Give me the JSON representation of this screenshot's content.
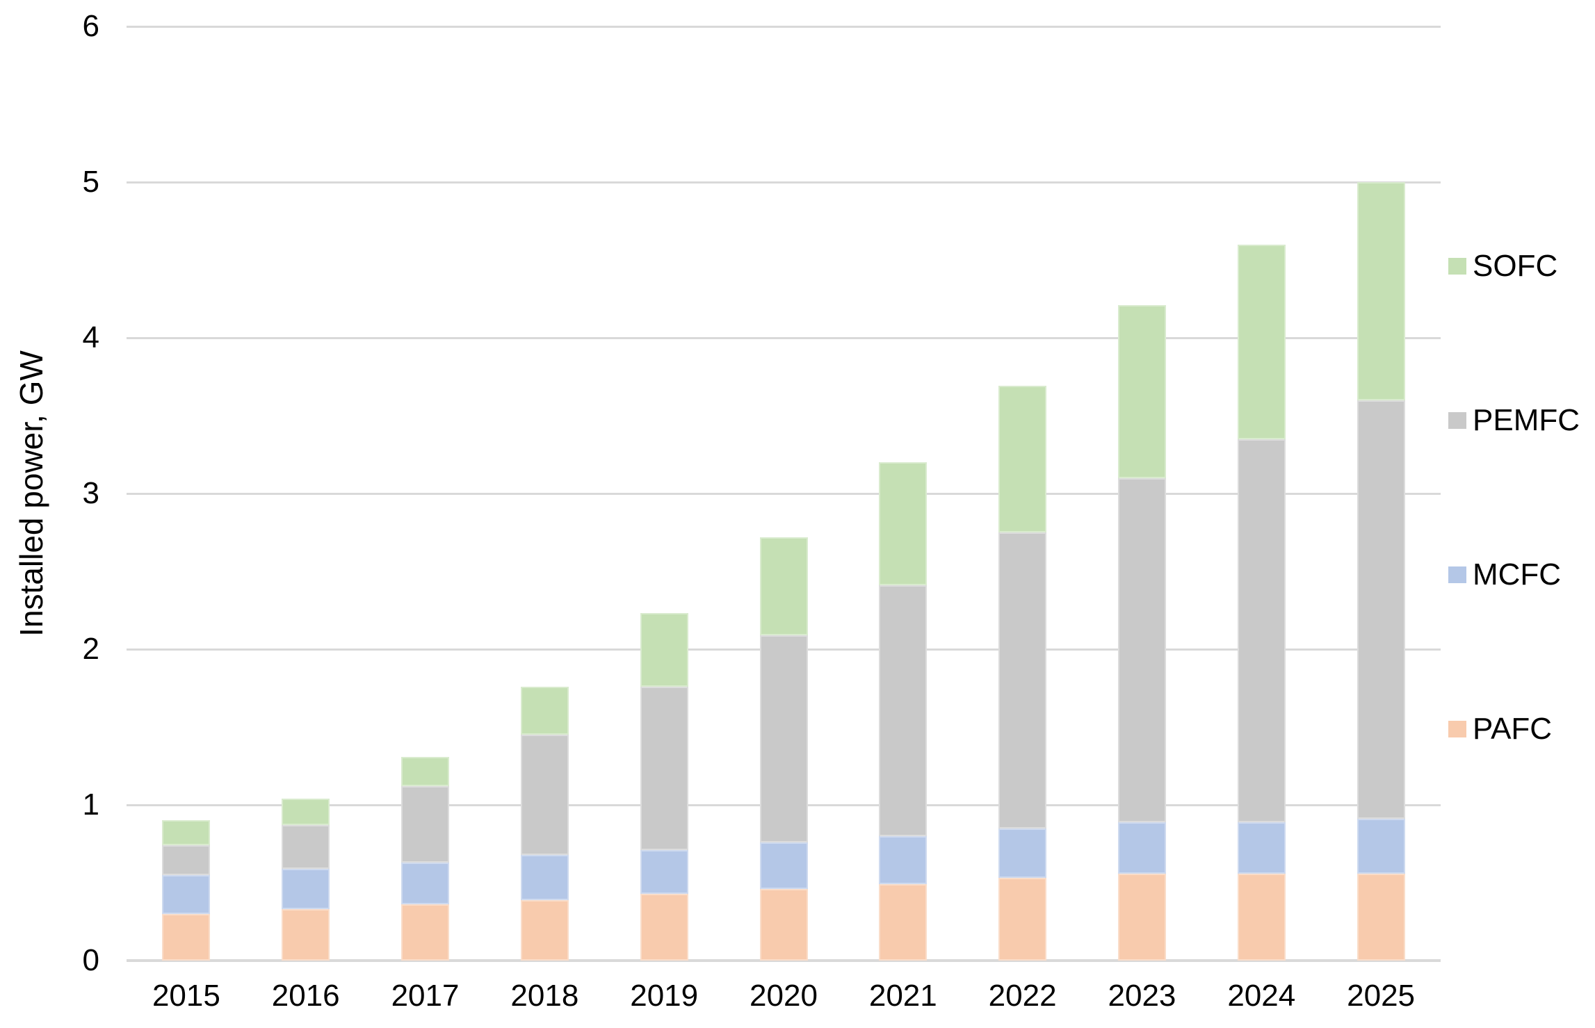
{
  "chart_data": {
    "type": "bar",
    "stacked": true,
    "title": "",
    "xlabel": "",
    "ylabel": "Installed power, GW",
    "ylim": [
      0,
      6
    ],
    "yticks": [
      0,
      1,
      2,
      3,
      4,
      5,
      6
    ],
    "grid": true,
    "legend_position": "right",
    "categories": [
      "2015",
      "2016",
      "2017",
      "2018",
      "2019",
      "2020",
      "2021",
      "2022",
      "2023",
      "2024",
      "2025"
    ],
    "series": [
      {
        "name": "PAFC",
        "color": "#F8CBAD",
        "values": [
          0.3,
          0.33,
          0.36,
          0.39,
          0.43,
          0.46,
          0.49,
          0.53,
          0.56,
          0.56,
          0.56
        ]
      },
      {
        "name": "MCFC",
        "color": "#B4C7E7",
        "values": [
          0.25,
          0.26,
          0.27,
          0.29,
          0.28,
          0.3,
          0.31,
          0.32,
          0.33,
          0.33,
          0.35
        ]
      },
      {
        "name": "PEMFC",
        "color": "#C9C9C9",
        "values": [
          0.19,
          0.28,
          0.49,
          0.77,
          1.05,
          1.33,
          1.61,
          1.9,
          2.21,
          2.46,
          2.69
        ]
      },
      {
        "name": "SOFC",
        "color": "#C5E0B4",
        "values": [
          0.16,
          0.17,
          0.19,
          0.31,
          0.47,
          0.63,
          0.79,
          0.94,
          1.11,
          1.25,
          1.4
        ]
      }
    ],
    "totals": [
      0.9,
      1.04,
      1.31,
      1.76,
      2.23,
      2.72,
      3.2,
      3.69,
      4.21,
      4.6,
      5.0
    ],
    "colors": {
      "gridline": "#d9d9d9",
      "axis": "#d9d9d9",
      "text": "#000000"
    }
  }
}
